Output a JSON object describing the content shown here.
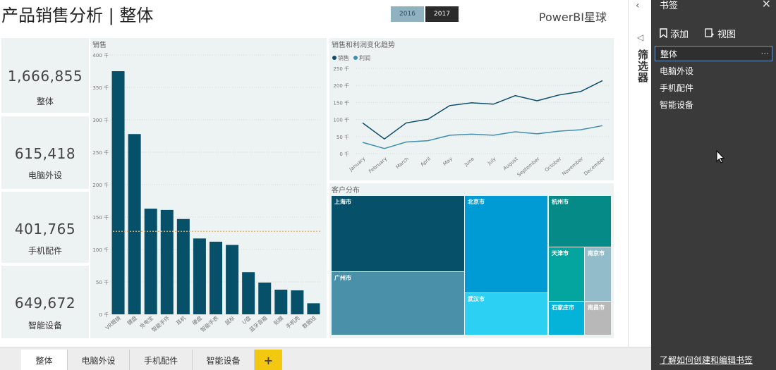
{
  "header": {
    "title": "产品销售分析 | 整体",
    "years": [
      "2016",
      "2017"
    ],
    "selected_year": "2017",
    "brand": "PowerBI星球"
  },
  "cards": [
    {
      "value": "1,666,855",
      "label": "整体"
    },
    {
      "value": "615,418",
      "label": "电脑外设"
    },
    {
      "value": "401,765",
      "label": "手机配件"
    },
    {
      "value": "649,672",
      "label": "智能设备"
    }
  ],
  "sales_panel": {
    "title": "销售"
  },
  "trend_panel": {
    "title": "销售和利润变化趋势"
  },
  "customer_panel": {
    "title": "客户分布"
  },
  "chart_data": [
    {
      "type": "bar",
      "title": "销售",
      "xlabel": "",
      "ylabel": "",
      "ylim": [
        0,
        400
      ],
      "ytick_labels": [
        "0 千",
        "50 千",
        "100 千",
        "150 千",
        "200 千",
        "250 千",
        "300 千",
        "350 千",
        "400 千"
      ],
      "categories": [
        "VR眼镜",
        "键盘",
        "充电宝",
        "智能手环",
        "耳机",
        "硬盘",
        "智能手表",
        "鼠标",
        "U盘",
        "蓝牙音箱",
        "贴膜",
        "手机壳",
        "数据线"
      ],
      "values": [
        375,
        278,
        163,
        161,
        147,
        117,
        112,
        107,
        65,
        49,
        38,
        37,
        17
      ],
      "reference_line": 128,
      "reference_color": "#d9b27a",
      "bar_color": "#06506a",
      "grid": true
    },
    {
      "type": "line",
      "title": "销售和利润变化趋势",
      "ylim": [
        0,
        250
      ],
      "ytick_labels": [
        "0 千",
        "50 千",
        "100 千",
        "150 千",
        "200 千",
        "250 千"
      ],
      "categories": [
        "January",
        "February",
        "March",
        "April",
        "May",
        "June",
        "July",
        "August",
        "September",
        "October",
        "November",
        "December"
      ],
      "series": [
        {
          "name": "销售",
          "color": "#0c4d6b",
          "values": [
            90,
            43,
            90,
            101,
            141,
            149,
            145,
            170,
            155,
            172,
            182,
            214
          ]
        },
        {
          "name": "利润",
          "color": "#3f8fb1",
          "values": [
            33,
            15,
            34,
            38,
            54,
            57,
            54,
            64,
            58,
            66,
            70,
            82
          ]
        }
      ],
      "legend": "top-left",
      "grid": true
    },
    {
      "type": "treemap",
      "title": "客户分布",
      "items": [
        {
          "name": "上海市",
          "color": "#06506a"
        },
        {
          "name": "广州市",
          "color": "#4a90a8"
        },
        {
          "name": "北京市",
          "color": "#009bd4"
        },
        {
          "name": "武汉市",
          "color": "#2bd0f2"
        },
        {
          "name": "杭州市",
          "color": "#058a87"
        },
        {
          "name": "天津市",
          "color": "#04a59f"
        },
        {
          "name": "南京市",
          "color": "#93bccb"
        },
        {
          "name": "石家庄市",
          "color": "#05b2d8"
        },
        {
          "name": "南昌市",
          "color": "#b8b8b8"
        }
      ]
    }
  ],
  "tabs": [
    {
      "label": "整体",
      "active": true
    },
    {
      "label": "电脑外设",
      "active": false
    },
    {
      "label": "手机配件",
      "active": false
    },
    {
      "label": "智能设备",
      "active": false
    }
  ],
  "tab_add": "+",
  "filters": {
    "label": "筛选器",
    "chevron": "‹",
    "icon": "filter-icon"
  },
  "bookmarks": {
    "title": "书签",
    "add_label": "添加",
    "view_label": "视图",
    "items": [
      "整体",
      "电脑外设",
      "手机配件",
      "智能设备"
    ],
    "selected": "整体",
    "more": "···",
    "learn_link": "了解如何创建和编辑书签"
  }
}
